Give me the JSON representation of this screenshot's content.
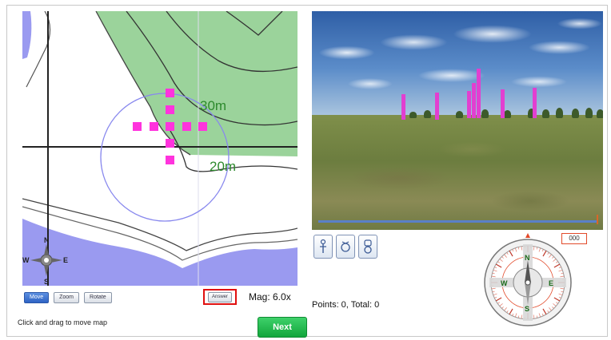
{
  "map": {
    "labels": {
      "contour_30": "30m",
      "contour_20": "20m"
    },
    "north_arrow": {
      "n": "N",
      "s": "S",
      "e": "E",
      "w": "W"
    },
    "colors": {
      "vegetation": "#9bd39b",
      "water": "#9a9af0",
      "marker": "#ff33dd",
      "range_circle": "#8888ee"
    }
  },
  "map_toolbar": {
    "modes": [
      {
        "label": "Move",
        "active": true
      },
      {
        "label": "Zoom",
        "active": false
      },
      {
        "label": "Rotate",
        "active": false
      }
    ],
    "answer_label": "Answer",
    "mag_label": "Mag: 6.0x"
  },
  "hint": "Click and drag to move map",
  "next_label": "Next",
  "score": {
    "text": "Points: 0, Total: 0"
  },
  "view": {
    "tools": [
      "walk-person-icon",
      "rotate-view-icon",
      "toggle-view-icon"
    ]
  },
  "compass": {
    "bearing": "000",
    "letters": {
      "n": "N",
      "s": "S",
      "e": "E",
      "w": "W"
    }
  }
}
